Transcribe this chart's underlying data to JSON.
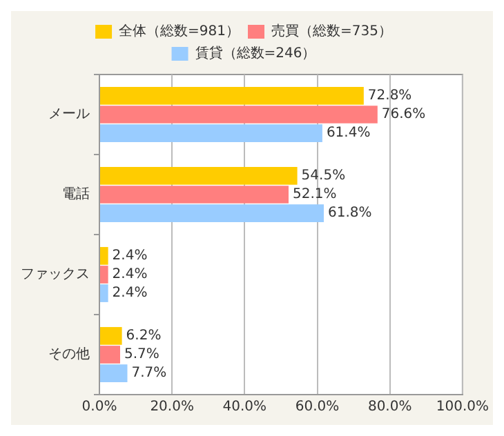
{
  "chart_data": {
    "type": "bar",
    "orientation": "horizontal",
    "categories": [
      "メール",
      "電話",
      "ファックス",
      "その他"
    ],
    "series": [
      {
        "name": "全体（総数=981）",
        "color": "#ffcc00",
        "values": [
          72.8,
          54.5,
          2.4,
          6.2
        ],
        "value_labels": [
          "72.8%",
          "54.5%",
          "2.4%",
          "6.2%"
        ]
      },
      {
        "name": "売買（総数=735）",
        "color": "#ff7f7f",
        "values": [
          76.6,
          52.1,
          2.4,
          5.7
        ],
        "value_labels": [
          "76.6%",
          "52.1%",
          "2.4%",
          "5.7%"
        ]
      },
      {
        "name": "賃貸（総数=246）",
        "color": "#99ccff",
        "values": [
          61.4,
          61.8,
          2.4,
          7.7
        ],
        "value_labels": [
          "61.4%",
          "61.8%",
          "2.4%",
          "7.7%"
        ]
      }
    ],
    "xlim": [
      0,
      100
    ],
    "xticks": [
      {
        "value": 0,
        "label": "0.0%"
      },
      {
        "value": 20,
        "label": "20.0%"
      },
      {
        "value": 40,
        "label": "40.0%"
      },
      {
        "value": 60,
        "label": "60.0%"
      },
      {
        "value": 80,
        "label": "80.0%"
      },
      {
        "value": 100,
        "label": "100.0%"
      }
    ],
    "grid": "x",
    "legend": "top"
  }
}
